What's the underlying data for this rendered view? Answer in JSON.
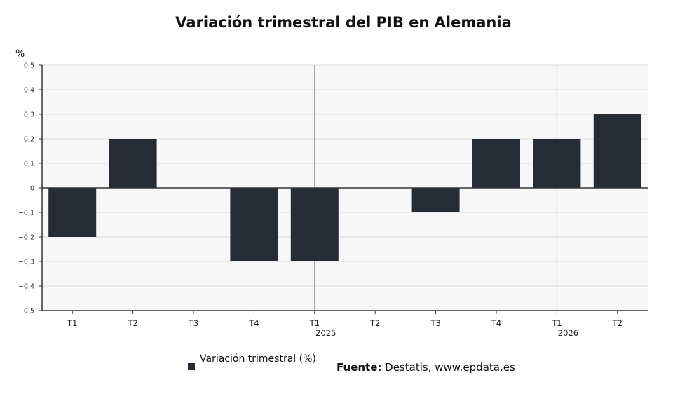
{
  "chart_data": {
    "type": "bar",
    "title": "Variación trimestral del PIB en Alemania",
    "ylabel": "%",
    "xlabel": "",
    "ylim": [
      -0.5,
      0.5
    ],
    "yticks": [
      "0,5",
      "0,4",
      "0,3",
      "0,2",
      "0,1",
      "0",
      "−0,1",
      "−0,2",
      "−0,3",
      "−0,4",
      "−0,5"
    ],
    "ytick_values": [
      0.5,
      0.4,
      0.3,
      0.2,
      0.1,
      0,
      -0.1,
      -0.2,
      -0.3,
      -0.4,
      -0.5
    ],
    "categories": [
      "T1",
      "T2",
      "T3",
      "T4",
      "T1",
      "T2",
      "T3",
      "T4",
      "T1",
      "T2"
    ],
    "year_labels": [
      "",
      "",
      "",
      "",
      "2025",
      "",
      "",
      "",
      "2026",
      ""
    ],
    "series": [
      {
        "name": "Variación trimestral (%)",
        "values": [
          -0.2,
          0.2,
          0,
          -0.3,
          -0.3,
          0,
          -0.1,
          0.2,
          0.2,
          0.3
        ]
      }
    ],
    "grid": true,
    "legend_position": "bottom-left"
  },
  "colors": {
    "bar": "#252c35",
    "plot_background": "#f7f7f7",
    "grid": "#dddddd",
    "axis": "#333333",
    "year_separator": "#888888"
  },
  "legend": {
    "label": "Variación trimestral (%)"
  },
  "source": {
    "label": "Fuente:",
    "text": "Destatis,",
    "link": "www.epdata.es"
  }
}
